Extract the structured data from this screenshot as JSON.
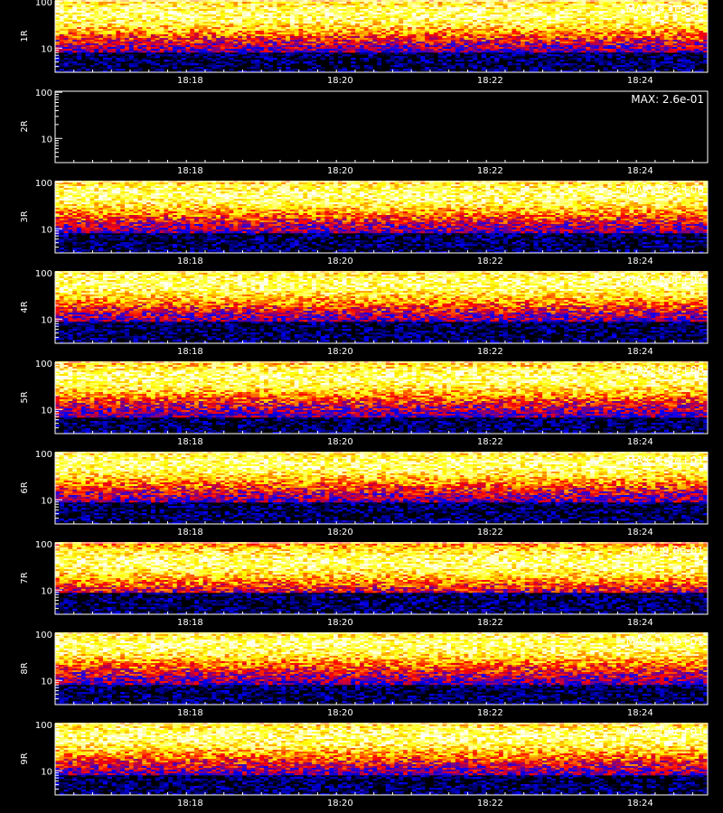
{
  "chart_data": {
    "type": "heatmap",
    "colormap": [
      "#000000",
      "#0000ff",
      "#ff0000",
      "#ffff00",
      "#ffffff"
    ],
    "axis_color": "#ffffff",
    "background": "#000000",
    "x_tick_labels": [
      "18:18",
      "18:20",
      "18:22",
      "18:24"
    ],
    "x_tick_minutes": [
      18.3,
      20.3,
      22.3,
      24.3
    ],
    "x_range_minutes": [
      16.5,
      25.2
    ],
    "x_label": "",
    "y_scale": "log",
    "y_ticks": [
      {
        "value": 100,
        "label": "100"
      },
      {
        "value": 10,
        "label": "10"
      }
    ],
    "y_range": [
      3,
      110
    ],
    "panels": [
      {
        "ylabel": "1R",
        "max_label": "MAX: 6.1e+00",
        "empty": false,
        "band_center": 55,
        "low_edge": 8
      },
      {
        "ylabel": "2R",
        "max_label": "MAX: 2.6e-01",
        "empty": true,
        "band_center": 55,
        "low_edge": 8
      },
      {
        "ylabel": "3R",
        "max_label": "MAX: 6.2e+00",
        "empty": false,
        "band_center": 55,
        "low_edge": 8
      },
      {
        "ylabel": "4R",
        "max_label": "MAX: 1.0e+01",
        "empty": false,
        "band_center": 60,
        "low_edge": 9
      },
      {
        "ylabel": "5R",
        "max_label": "MAX: 8.0e+00",
        "empty": false,
        "band_center": 50,
        "low_edge": 7
      },
      {
        "ylabel": "6R",
        "max_label": "MAX: 1.2e+01",
        "empty": false,
        "band_center": 60,
        "low_edge": 9
      },
      {
        "ylabel": "7R",
        "max_label": "MAX: 9.6e-01",
        "empty": false,
        "band_center": 40,
        "low_edge": 9
      },
      {
        "ylabel": "8R",
        "max_label": "MAX: 1.1e+01",
        "empty": false,
        "band_center": 60,
        "low_edge": 8
      },
      {
        "ylabel": "9R",
        "max_label": "MAX: 1.0e+01",
        "empty": false,
        "band_center": 55,
        "low_edge": 8
      }
    ]
  }
}
